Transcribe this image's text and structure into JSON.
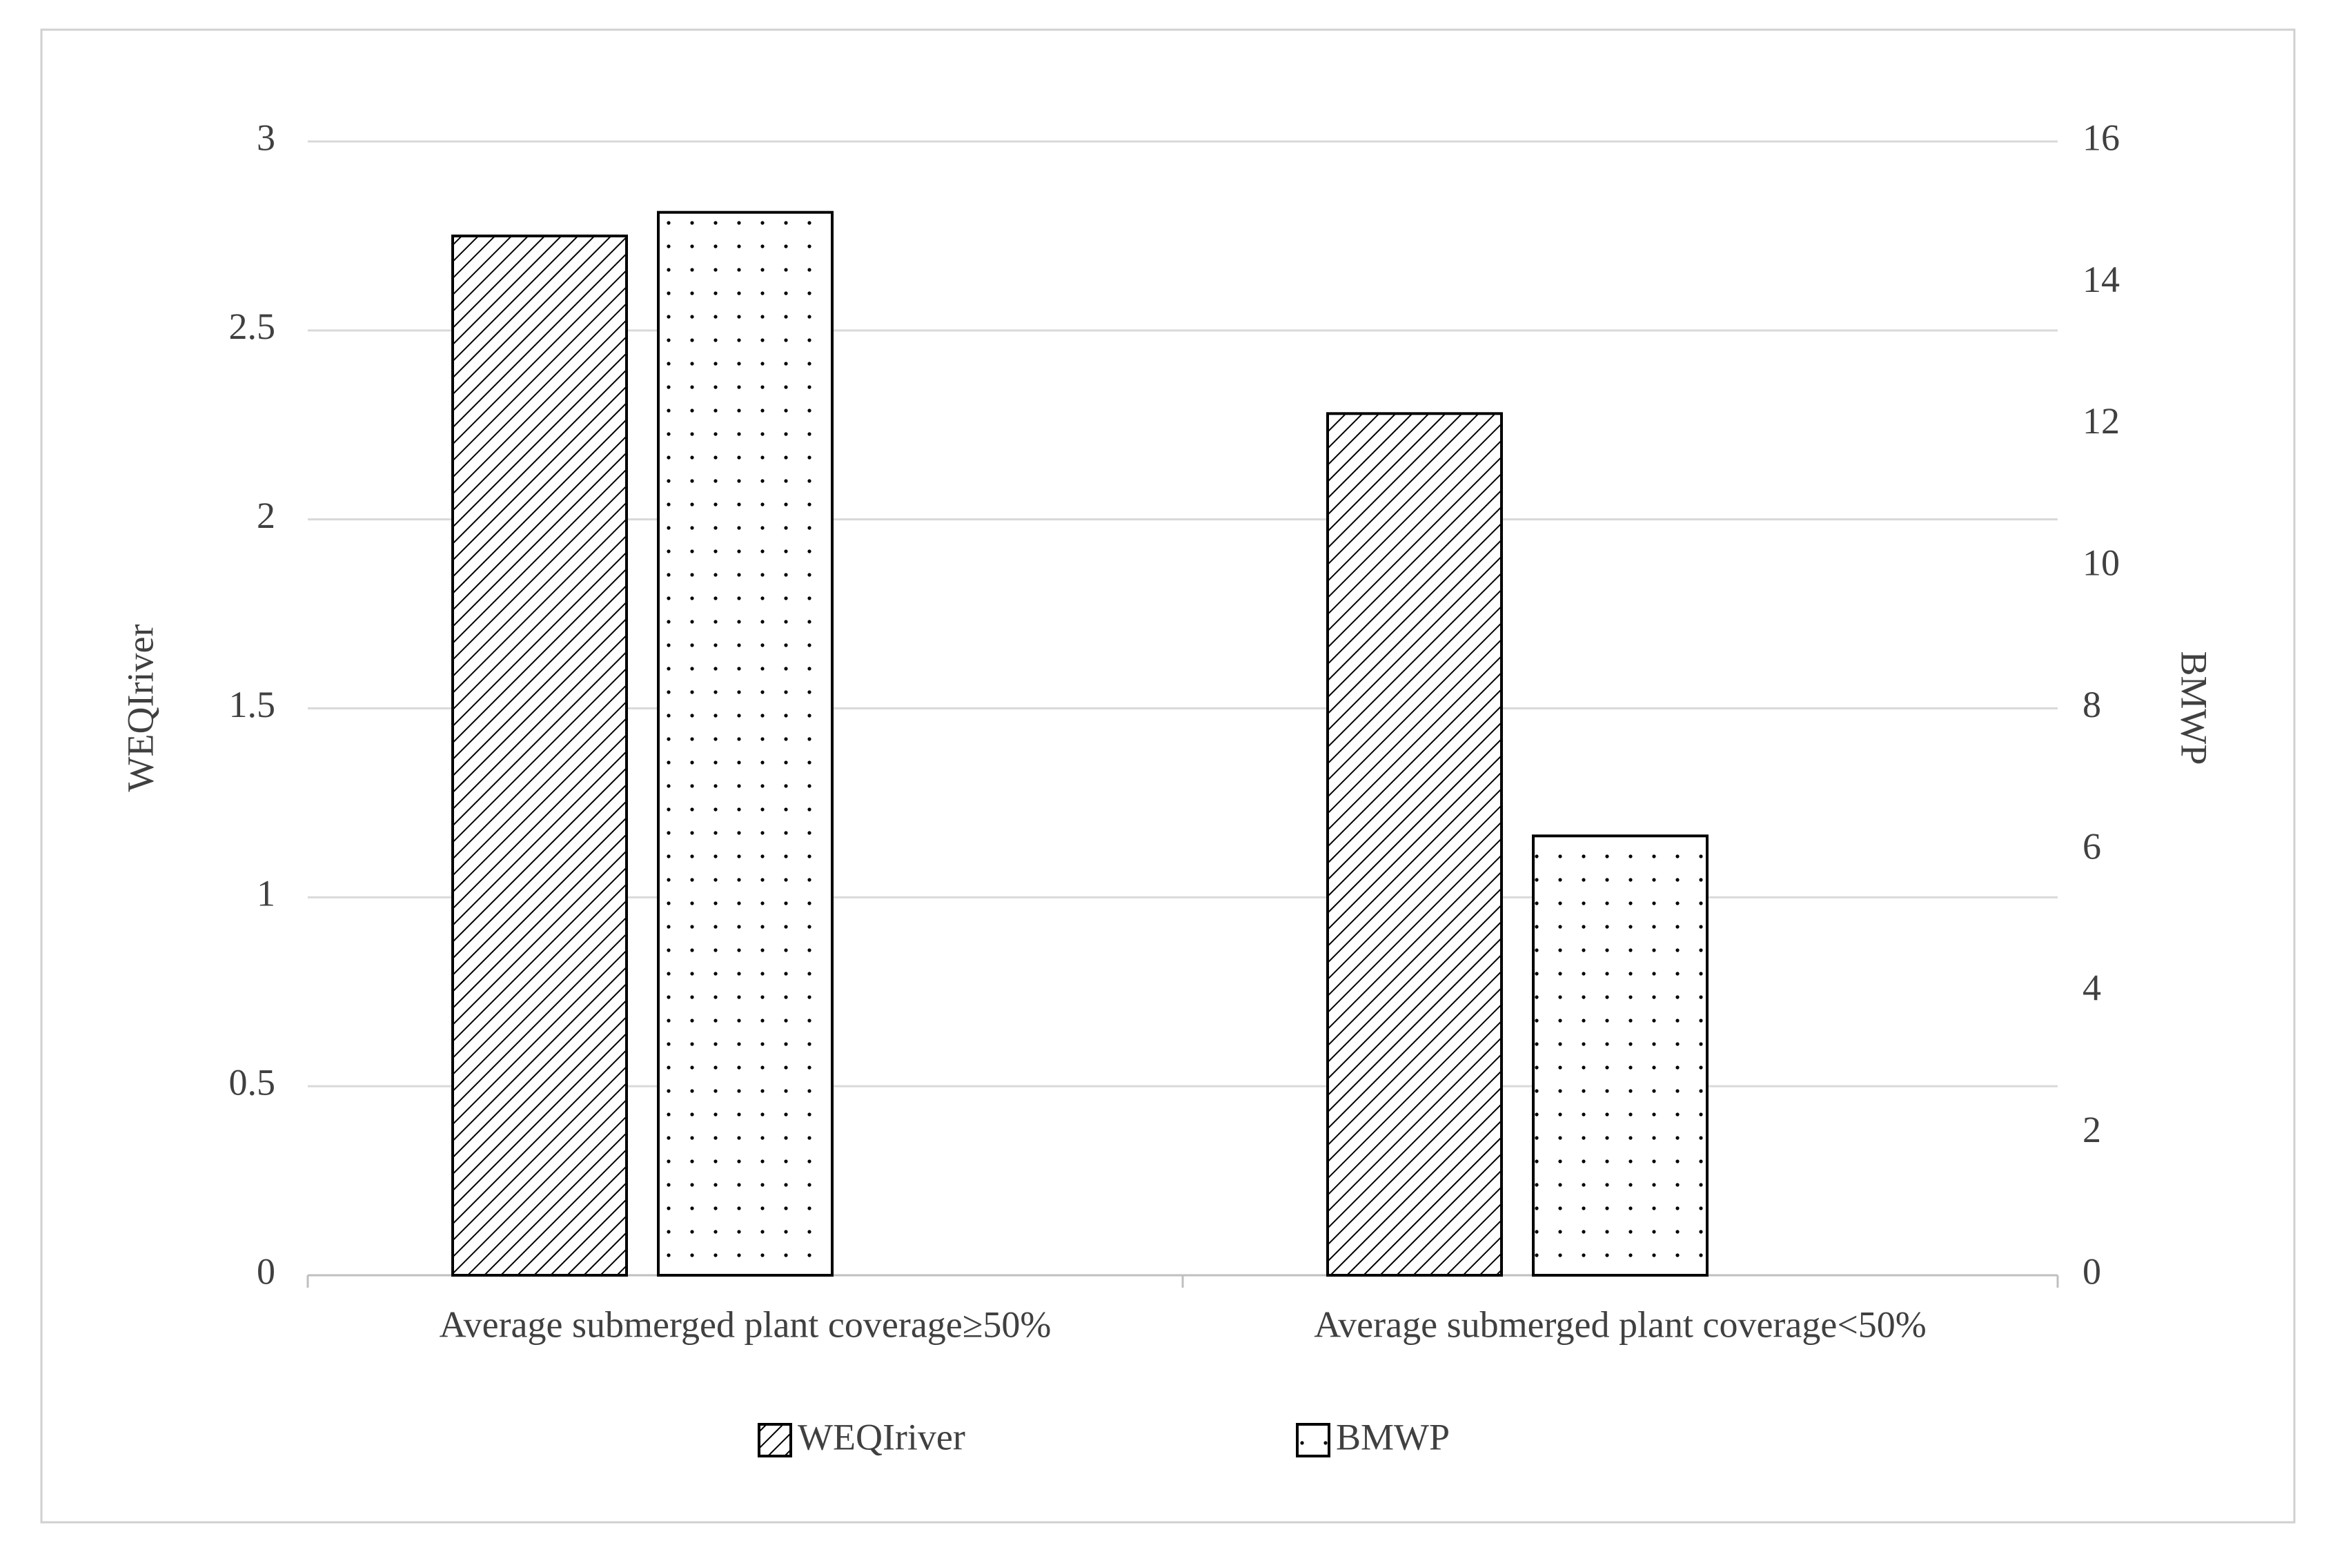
{
  "chart_data": {
    "type": "bar",
    "categories": [
      "Average submerged plant coverage≥50%",
      "Average submerged plant coverage<50%"
    ],
    "series": [
      {
        "name": "WEQIriver",
        "color": "#000000",
        "pattern": "hatch",
        "values": [
          2.75,
          2.28
        ]
      },
      {
        "name": "BMWP",
        "color": "#000000",
        "pattern": "dots",
        "axis": "y2",
        "values": [
          15.0,
          6.2
        ]
      }
    ],
    "ylabel": "WEQIriver",
    "y2label": "BMWP",
    "ylim": [
      0,
      3
    ],
    "yticks": [
      0,
      0.5,
      1,
      1.5,
      2,
      2.5,
      3
    ],
    "y2lim": [
      0,
      16
    ],
    "y2ticks": [
      0,
      2,
      4,
      6,
      8,
      10,
      12,
      14,
      16
    ],
    "grid": true,
    "legend": "bottom"
  }
}
